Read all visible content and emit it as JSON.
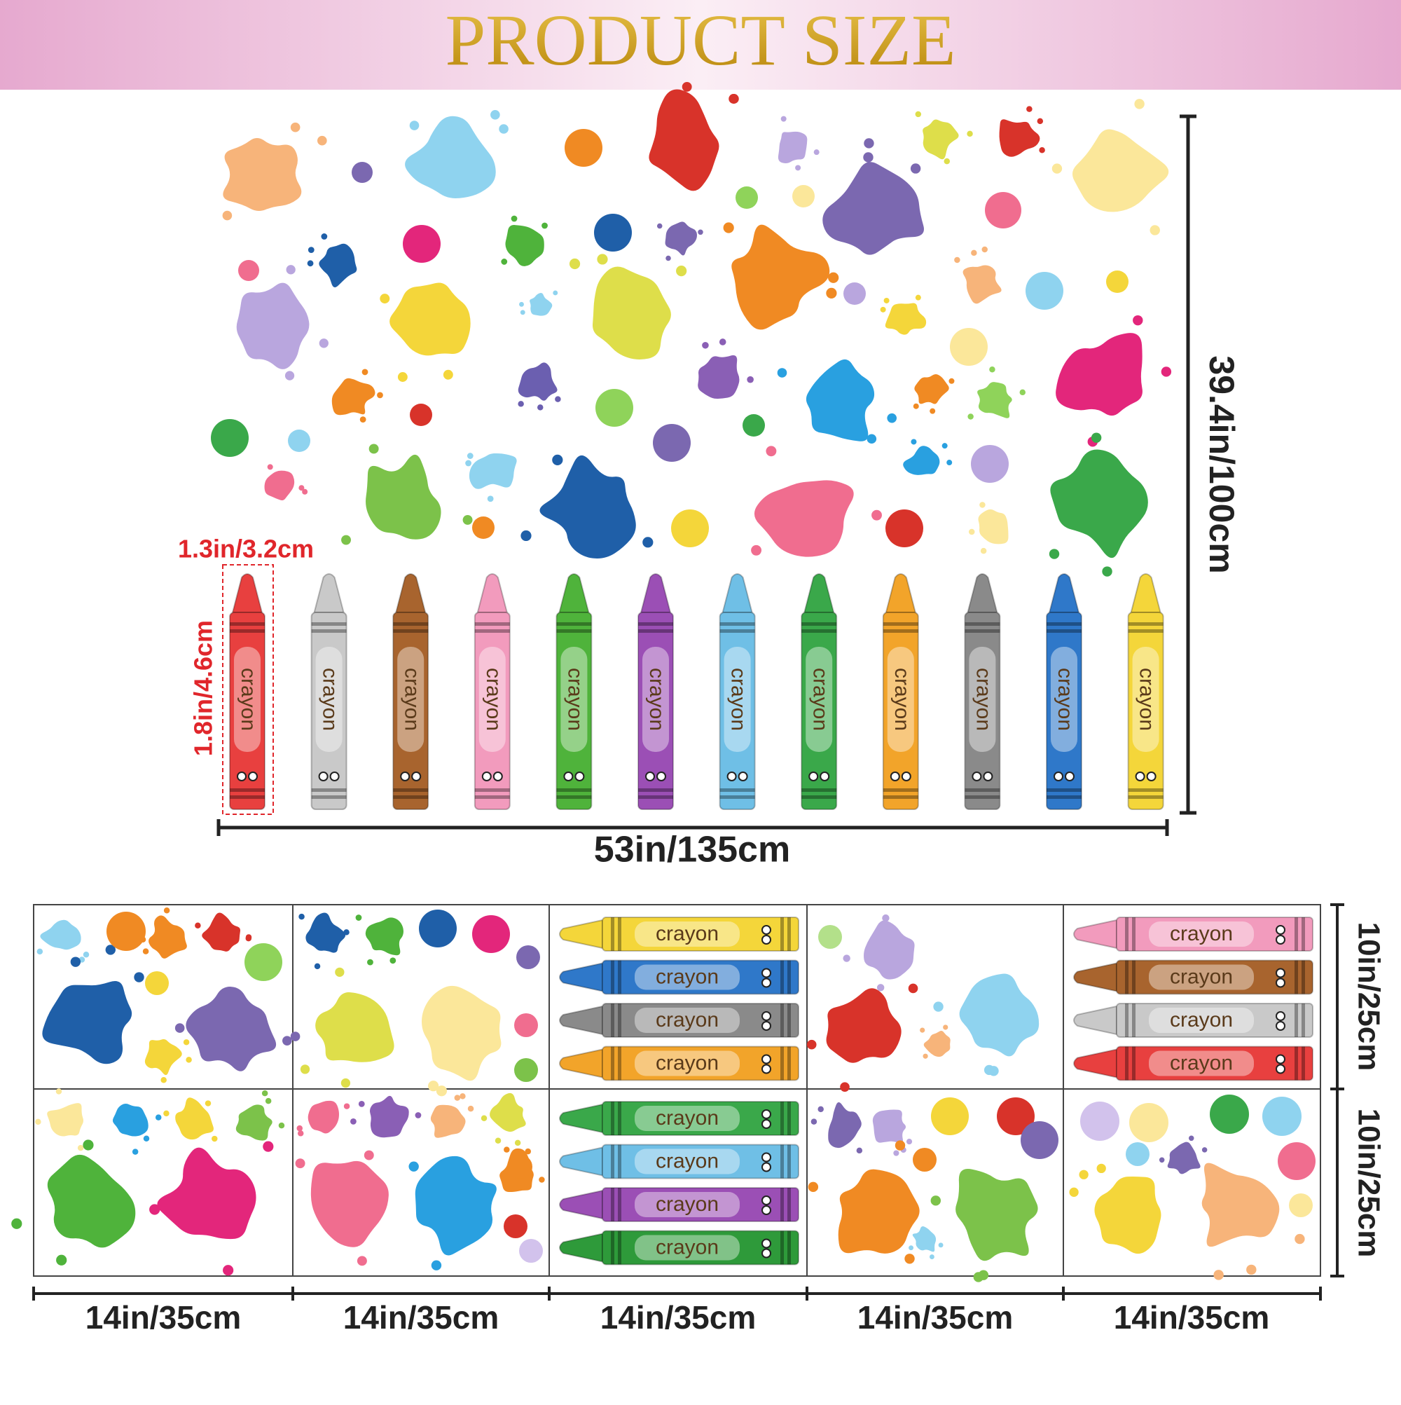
{
  "header": {
    "title": "PRODUCT SIZE"
  },
  "main_sheet": {
    "width_label": "53in/135cm",
    "height_label": "39.4in/100cm",
    "crayon_width_label": "1.3in/3.2cm",
    "crayon_height_label": "1.8in/4.6cm",
    "crayons": [
      {
        "label": "crayon",
        "color": "#e8403f"
      },
      {
        "label": "crayon",
        "color": "#c9c9c9"
      },
      {
        "label": "crayon",
        "color": "#a8642e"
      },
      {
        "label": "crayon",
        "color": "#f29bbd"
      },
      {
        "label": "crayon",
        "color": "#4fb33b"
      },
      {
        "label": "crayon",
        "color": "#9b4fb5"
      },
      {
        "label": "crayon",
        "color": "#6fbfe6"
      },
      {
        "label": "crayon",
        "color": "#3aa84a"
      },
      {
        "label": "crayon",
        "color": "#f2a42a"
      },
      {
        "label": "crayon",
        "color": "#8a8a8a"
      },
      {
        "label": "crayon",
        "color": "#2f78c9"
      },
      {
        "label": "crayon",
        "color": "#f4d63a"
      }
    ]
  },
  "small_sheets": {
    "width_labels": [
      "14in/35cm",
      "14in/35cm",
      "14in/35cm",
      "14in/35cm",
      "14in/35cm"
    ],
    "height_labels": [
      "10in/25cm",
      "10in/25cm"
    ],
    "crayon_panels": [
      [
        {
          "label": "crayon",
          "color": "#f4d63a"
        },
        {
          "label": "crayon",
          "color": "#2f78c9"
        },
        {
          "label": "crayon",
          "color": "#8a8a8a"
        },
        {
          "label": "crayon",
          "color": "#f2a42a"
        }
      ],
      [
        {
          "label": "crayon",
          "color": "#f29bbd"
        },
        {
          "label": "crayon",
          "color": "#a8642e"
        },
        {
          "label": "crayon",
          "color": "#c9c9c9"
        },
        {
          "label": "crayon",
          "color": "#e8403f"
        }
      ],
      [
        {
          "label": "crayon",
          "color": "#3aa84a"
        },
        {
          "label": "crayon",
          "color": "#6fbfe6"
        },
        {
          "label": "crayon",
          "color": "#9b4fb5"
        },
        {
          "label": "crayon",
          "color": "#2e9a3a"
        }
      ]
    ]
  }
}
